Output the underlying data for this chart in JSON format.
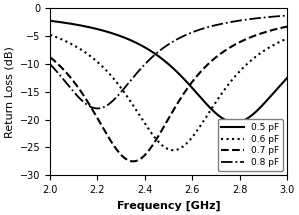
{
  "title": "",
  "xlabel": "Frequency [GHz]",
  "ylabel": "Return Loss (dB)",
  "xlim": [
    2.0,
    3.0
  ],
  "ylim": [
    -30,
    0
  ],
  "xticks": [
    2.0,
    2.2,
    2.4,
    2.6,
    2.8,
    3.0
  ],
  "yticks": [
    0,
    -5,
    -10,
    -15,
    -20,
    -25,
    -30
  ],
  "curves": [
    {
      "label": "0.5 pF",
      "resonance_freq": 2.78,
      "min_val": -20.5,
      "bw": 0.55,
      "linestyle": "-",
      "linewidth": 1.5,
      "color": "black"
    },
    {
      "label": "0.6 pF",
      "resonance_freq": 2.52,
      "min_val": -25.5,
      "bw": 0.5,
      "linestyle": ":",
      "linewidth": 1.5,
      "color": "black"
    },
    {
      "label": "0.7 pF",
      "resonance_freq": 2.35,
      "min_val": -27.5,
      "bw": 0.48,
      "linestyle": "--",
      "linewidth": 1.5,
      "color": "black"
    },
    {
      "label": "0.8 pF",
      "resonance_freq": 2.2,
      "min_val": -18.0,
      "bw": 0.45,
      "linestyle": "-.",
      "linewidth": 1.3,
      "color": "black"
    }
  ],
  "background_color": "#ffffff",
  "legend_loc": "lower right",
  "legend_fontsize": 6.5,
  "axis_fontsize": 8,
  "tick_fontsize": 7
}
